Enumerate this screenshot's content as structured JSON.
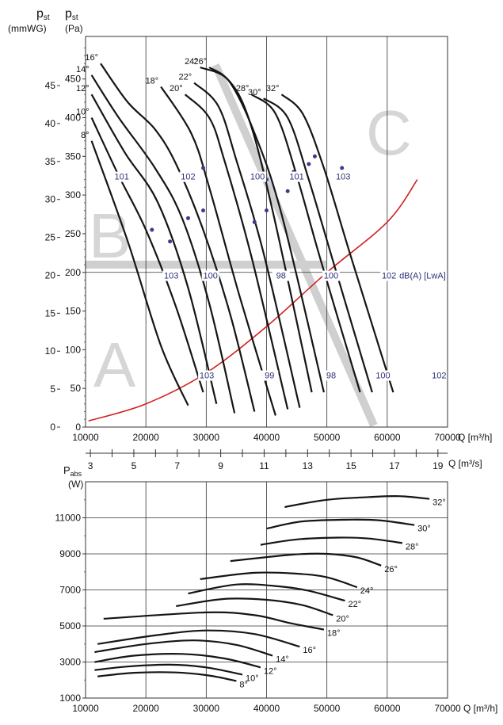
{
  "chart_data": [
    {
      "type": "line",
      "title": "",
      "ylabel_mm": {
        "symbol": "p",
        "sub": "st",
        "unit": "(mmWG)"
      },
      "ylabel_pa": {
        "symbol": "p",
        "sub": "st",
        "unit": "(Pa)"
      },
      "xlabel_flow": "Q [m³/h]",
      "xlabel_flow_s": "Q [m³/s]",
      "xlim": [
        10000,
        70000
      ],
      "ylim_pa": [
        0,
        500
      ],
      "x_ticks": [
        "10000",
        "20000",
        "30000",
        "40000",
        "50000",
        "60000",
        "70000"
      ],
      "x2_ticks": [
        "3",
        "5",
        "7",
        "9",
        "11",
        "13",
        "15",
        "17",
        "19"
      ],
      "y_pa_ticks": [
        "0",
        "50",
        "100",
        "150",
        "200",
        "250",
        "300",
        "350",
        "400",
        "450"
      ],
      "y_mm_ticks": [
        "0",
        "5",
        "10",
        "15",
        "20",
        "25",
        "30",
        "35",
        "40",
        "45"
      ],
      "zones": [
        "A",
        "B",
        "C"
      ],
      "series": [
        {
          "name": "8°",
          "points": [
            [
              11000,
              370
            ],
            [
              17000,
              240
            ],
            [
              22500,
              105
            ],
            [
              27000,
              28
            ]
          ]
        },
        {
          "name": "10°",
          "points": [
            [
              11000,
              400
            ],
            [
              15500,
              325
            ],
            [
              20000,
              255
            ],
            [
              25000,
              155
            ],
            [
              29500,
              45
            ]
          ]
        },
        {
          "name": "12°",
          "points": [
            [
              11000,
              430
            ],
            [
              16500,
              355
            ],
            [
              22000,
              290
            ],
            [
              27000,
              180
            ],
            [
              31700,
              30
            ]
          ]
        },
        {
          "name": "14°",
          "points": [
            [
              11000,
              455
            ],
            [
              15500,
              400
            ],
            [
              21500,
              335
            ],
            [
              26000,
              270
            ],
            [
              30500,
              160
            ],
            [
              34700,
              18
            ]
          ]
        },
        {
          "name": "16°",
          "points": [
            [
              12500,
              470
            ],
            [
              17000,
              420
            ],
            [
              21500,
              385
            ],
            [
              25000,
              340
            ],
            [
              29500,
              255
            ],
            [
              34000,
              145
            ],
            [
              38000,
              20
            ]
          ]
        },
        {
          "name": "18°",
          "points": [
            [
              22500,
              440
            ],
            [
              27500,
              380
            ],
            [
              30500,
              310
            ],
            [
              35500,
              170
            ],
            [
              41500,
              15
            ]
          ]
        },
        {
          "name": "20°",
          "points": [
            [
              26500,
              430
            ],
            [
              30500,
              400
            ],
            [
              33000,
              345
            ],
            [
              37500,
              220
            ],
            [
              43500,
              23
            ]
          ]
        },
        {
          "name": "22°",
          "points": [
            [
              28000,
              445
            ],
            [
              32000,
              415
            ],
            [
              35000,
              345
            ],
            [
              39500,
              225
            ],
            [
              45500,
              25
            ]
          ]
        },
        {
          "name": "24°",
          "points": [
            [
              29000,
              465
            ],
            [
              33500,
              450
            ],
            [
              37000,
              400
            ],
            [
              41000,
              280
            ],
            [
              47500,
              45
            ]
          ]
        },
        {
          "name": "26°",
          "points": [
            [
              30500,
              465
            ],
            [
              34000,
              445
            ],
            [
              38000,
              380
            ],
            [
              42500,
              275
            ],
            [
              49500,
              45
            ]
          ]
        },
        {
          "name": "28°",
          "points": [
            [
              37500,
              430
            ],
            [
              41500,
              405
            ],
            [
              45000,
              325
            ],
            [
              49000,
              215
            ],
            [
              55500,
              45
            ]
          ]
        },
        {
          "name": "30°",
          "points": [
            [
              39500,
              425
            ],
            [
              43500,
              400
            ],
            [
              47000,
              320
            ],
            [
              51000,
              215
            ],
            [
              57500,
              45
            ]
          ]
        },
        {
          "name": "32°",
          "points": [
            [
              42500,
              430
            ],
            [
              46000,
              405
            ],
            [
              49500,
              335
            ],
            [
              54000,
              220
            ],
            [
              61000,
              45
            ]
          ]
        }
      ],
      "system_curve": {
        "name": "system",
        "color": "#d21f1f",
        "points": [
          [
            10500,
            8
          ],
          [
            20000,
            30
          ],
          [
            30000,
            70
          ],
          [
            40000,
            130
          ],
          [
            50000,
            200
          ],
          [
            60000,
            265
          ],
          [
            65000,
            320
          ]
        ]
      },
      "markers": [
        [
          21000,
          255
        ],
        [
          24000,
          240
        ],
        [
          27000,
          270
        ],
        [
          29500,
          280
        ],
        [
          29500,
          335
        ],
        [
          38000,
          265
        ],
        [
          40000,
          280
        ],
        [
          40000,
          320
        ],
        [
          43500,
          305
        ],
        [
          44500,
          330
        ],
        [
          47000,
          340
        ],
        [
          48000,
          350
        ],
        [
          52500,
          335
        ]
      ],
      "dba_labels": [
        {
          "text": "101",
          "x": 16000,
          "y": 320
        },
        {
          "text": "102",
          "x": 27000,
          "y": 320
        },
        {
          "text": "100",
          "x": 38500,
          "y": 320
        },
        {
          "text": "101",
          "x": 45000,
          "y": 320
        },
        {
          "text": "103",
          "x": 52700,
          "y": 320
        },
        {
          "text": "103",
          "x": 24200,
          "y": 192
        },
        {
          "text": "100",
          "x": 30700,
          "y": 192
        },
        {
          "text": "98",
          "x": 42400,
          "y": 192
        },
        {
          "text": "100",
          "x": 50700,
          "y": 192
        },
        {
          "text": "102",
          "x": 60300,
          "y": 192
        },
        {
          "text": "103",
          "x": 30100,
          "y": 63
        },
        {
          "text": "99",
          "x": 40500,
          "y": 63
        },
        {
          "text": "98",
          "x": 50700,
          "y": 63
        },
        {
          "text": "100",
          "x": 59300,
          "y": 63
        },
        {
          "text": "102",
          "x": 68600,
          "y": 63
        }
      ],
      "dba_unit": "dB(A) [LwA]"
    },
    {
      "type": "line",
      "title": "",
      "ylabel": {
        "symbol": "P",
        "sub": "abs",
        "unit": "(W)"
      },
      "xlabel": "Q [m³/h]",
      "xlim": [
        10000,
        70000
      ],
      "ylim": [
        1000,
        13000
      ],
      "x_ticks": [
        "10000",
        "20000",
        "30000",
        "40000",
        "50000",
        "60000",
        "70000"
      ],
      "y_ticks": [
        "1000",
        "3000",
        "5000",
        "7000",
        "9000",
        "11000"
      ],
      "series": [
        {
          "name": "8°",
          "points": [
            [
              12000,
              2200
            ],
            [
              18000,
              2400
            ],
            [
              25000,
              2420
            ],
            [
              30500,
              2250
            ],
            [
              35000,
              1950
            ]
          ]
        },
        {
          "name": "10°",
          "points": [
            [
              11500,
              2550
            ],
            [
              17000,
              2750
            ],
            [
              24000,
              2850
            ],
            [
              30000,
              2700
            ],
            [
              36000,
              2300
            ]
          ]
        },
        {
          "name": "12°",
          "points": [
            [
              11500,
              3000
            ],
            [
              18000,
              3350
            ],
            [
              26000,
              3450
            ],
            [
              33000,
              3200
            ],
            [
              39000,
              2700
            ]
          ]
        },
        {
          "name": "14°",
          "points": [
            [
              11500,
              3550
            ],
            [
              20000,
              4000
            ],
            [
              28000,
              4200
            ],
            [
              35000,
              3950
            ],
            [
              41000,
              3350
            ]
          ]
        },
        {
          "name": "16°",
          "points": [
            [
              12000,
              4000
            ],
            [
              22000,
              4500
            ],
            [
              30000,
              4750
            ],
            [
              38000,
              4550
            ],
            [
              45500,
              3850
            ]
          ]
        },
        {
          "name": "18°",
          "points": [
            [
              13000,
              5400
            ],
            [
              30000,
              5750
            ],
            [
              38000,
              5600
            ],
            [
              44000,
              5150
            ],
            [
              49500,
              4800
            ]
          ]
        },
        {
          "name": "20°",
          "points": [
            [
              25000,
              6100
            ],
            [
              33000,
              6500
            ],
            [
              40000,
              6450
            ],
            [
              46000,
              6150
            ],
            [
              51000,
              5600
            ]
          ]
        },
        {
          "name": "22°",
          "points": [
            [
              27000,
              6800
            ],
            [
              35000,
              7300
            ],
            [
              42000,
              7200
            ],
            [
              47000,
              6950
            ],
            [
              53000,
              6400
            ]
          ]
        },
        {
          "name": "24°",
          "points": [
            [
              29000,
              7600
            ],
            [
              38000,
              7950
            ],
            [
              45000,
              7900
            ],
            [
              50000,
              7700
            ],
            [
              55000,
              7150
            ]
          ]
        },
        {
          "name": "26°",
          "points": [
            [
              34000,
              8600
            ],
            [
              44000,
              8950
            ],
            [
              50000,
              9000
            ],
            [
              55000,
              8800
            ],
            [
              59000,
              8350
            ]
          ]
        },
        {
          "name": "28°",
          "points": [
            [
              39000,
              9500
            ],
            [
              45000,
              9800
            ],
            [
              52000,
              9900
            ],
            [
              57000,
              9850
            ],
            [
              62500,
              9600
            ]
          ]
        },
        {
          "name": "30°",
          "points": [
            [
              40000,
              10400
            ],
            [
              46000,
              10800
            ],
            [
              54000,
              10900
            ],
            [
              59000,
              10850
            ],
            [
              64500,
              10600
            ]
          ]
        },
        {
          "name": "32°",
          "points": [
            [
              43000,
              11600
            ],
            [
              50000,
              12000
            ],
            [
              57000,
              12150
            ],
            [
              62000,
              12200
            ],
            [
              67000,
              12050
            ]
          ]
        }
      ]
    }
  ]
}
